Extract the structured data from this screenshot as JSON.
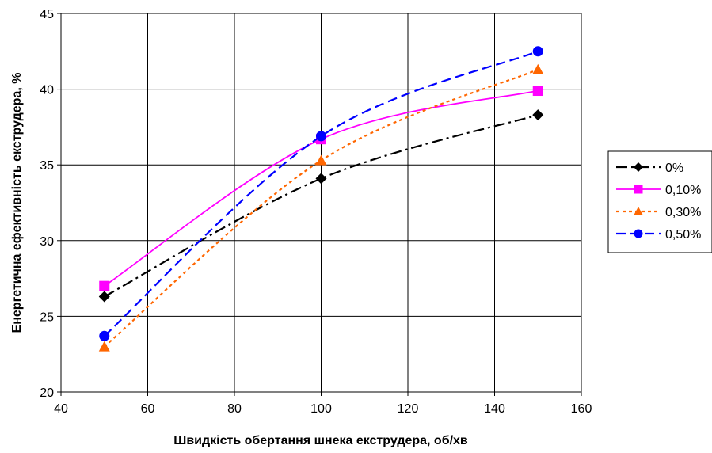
{
  "chart_data": {
    "type": "line",
    "xlabel": "Швидкість обертання шнека екструдера, об/хв",
    "ylabel": "Енергетична ефективність екструдера, %",
    "xlim": [
      40,
      160
    ],
    "ylim": [
      20,
      45
    ],
    "xticks": [
      40,
      60,
      80,
      100,
      120,
      140,
      160
    ],
    "yticks": [
      20,
      25,
      30,
      35,
      40,
      45
    ],
    "grid": true,
    "legend_position": "right",
    "series": [
      {
        "name": "0%",
        "x": [
          50,
          100,
          150
        ],
        "values": [
          26.3,
          34.1,
          38.3
        ],
        "color": "#000000",
        "marker": "diamond",
        "line_style": "dash-dot"
      },
      {
        "name": "0,10%",
        "x": [
          50,
          100,
          150
        ],
        "values": [
          27.0,
          36.7,
          39.9
        ],
        "color": "#ff00ff",
        "marker": "square",
        "line_style": "solid"
      },
      {
        "name": "0,30%",
        "x": [
          50,
          100,
          150
        ],
        "values": [
          23.0,
          35.3,
          41.3
        ],
        "color": "#ff6600",
        "marker": "triangle",
        "line_style": "dotted"
      },
      {
        "name": "0,50%",
        "x": [
          50,
          100,
          150
        ],
        "values": [
          23.7,
          36.9,
          42.5
        ],
        "color": "#0000ff",
        "marker": "circle",
        "line_style": "dashed"
      }
    ]
  }
}
